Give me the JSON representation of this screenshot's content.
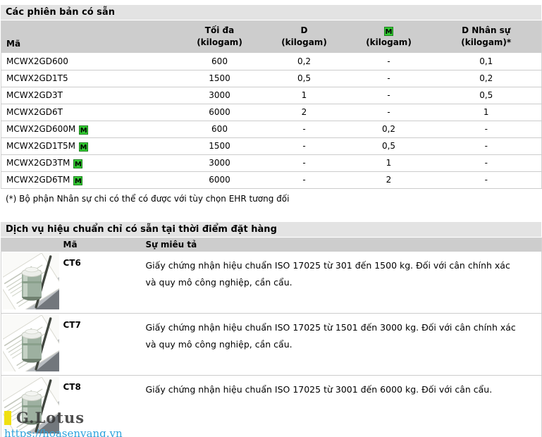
{
  "versions_table": {
    "title": "Các phiên bản có sẵn",
    "columns": [
      {
        "label": "Mã"
      },
      {
        "line1": "Tối đa",
        "line2": "(kilogam)"
      },
      {
        "line1": "D",
        "line2": "(kilogam)"
      },
      {
        "line1": "M",
        "line2": "(kilogam)",
        "is_badge": true
      },
      {
        "line1": "D Nhân sự",
        "line2": "(kilogam)*"
      }
    ],
    "m_badge_label": "M",
    "rows": [
      {
        "code": "MCWX2GD600",
        "m_badge": false,
        "values": [
          "600",
          "0,2",
          "-",
          "0,1"
        ]
      },
      {
        "code": "MCWX2GD1T5",
        "m_badge": false,
        "values": [
          "1500",
          "0,5",
          "-",
          "0,2"
        ]
      },
      {
        "code": "MCWX2GD3T",
        "m_badge": false,
        "values": [
          "3000",
          "1",
          "-",
          "0,5"
        ]
      },
      {
        "code": "MCWX2GD6T",
        "m_badge": false,
        "values": [
          "6000",
          "2",
          "-",
          "1"
        ]
      },
      {
        "code": "MCWX2GD600M",
        "m_badge": true,
        "values": [
          "600",
          "-",
          "0,2",
          "-"
        ]
      },
      {
        "code": "MCWX2GD1T5M",
        "m_badge": true,
        "values": [
          "1500",
          "-",
          "0,5",
          "-"
        ]
      },
      {
        "code": "MCWX2GD3TM",
        "m_badge": true,
        "values": [
          "3000",
          "-",
          "1",
          "-"
        ]
      },
      {
        "code": "MCWX2GD6TM",
        "m_badge": true,
        "values": [
          "6000",
          "-",
          "2",
          "-"
        ]
      }
    ],
    "footnote": "(*) Bộ phận Nhân sự chi có thể có được với tùy chọn EHR tương đối"
  },
  "services_table": {
    "title": "Dịch vụ hiệu chuẩn chỉ có sẵn tại thời điểm đặt hàng",
    "columns": {
      "image": "",
      "code": "Mã",
      "description": "Sự miêu tả"
    },
    "rows": [
      {
        "code": "CT6",
        "image": "certificate-with-test-weight",
        "description": "Giấy chứng nhận hiệu chuẩn ISO 17025 từ 301 đến 1500 kg. Đối với cân chính xác và quy mô công nghiệp, cần cẩu."
      },
      {
        "code": "CT7",
        "image": "certificate-with-test-weight",
        "description": "Giấy chứng nhận hiệu chuẩn ISO 17025 từ 1501 đến 3000 kg. Đối với cân chính xác và quy mô công nghiệp, cần cẩu."
      },
      {
        "code": "CT8",
        "image": "certificate-with-test-weight",
        "description": "Giấy chứng nhận hiệu chuẩn ISO 17025 từ 3001 đến 6000 kg. Đối với cân cẩu."
      }
    ]
  },
  "watermark": {
    "brand": "G.Lotus",
    "url": "https://hoasenvang.vn"
  },
  "colors": {
    "title_bar_bg": "#e3e3e3",
    "table_header_bg": "#cdcdcd",
    "row_border": "#cccccc",
    "m_badge_bg": "#33cc33",
    "m_badge_border": "#1e7e1e",
    "link": "#2fa3dc",
    "watermark_yellow": "#f0e010",
    "text": "#000000"
  }
}
